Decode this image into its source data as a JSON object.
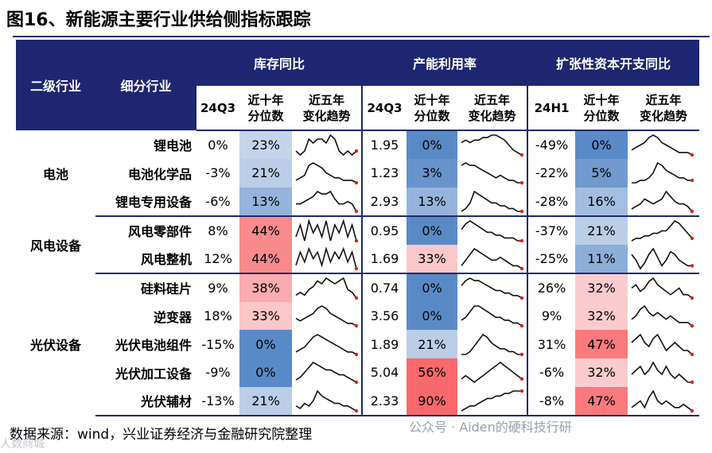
{
  "title": "图16、新能源主要行业供给侧指标跟踪",
  "source": "数据来源：wind，兴业证券经济与金融研究院整理",
  "watermark": "公众号 · Aiden的硬科技行研",
  "watermark2": "人数商城",
  "headers": {
    "segment": "二级行业",
    "industry": "细分行业",
    "groups": [
      "库存同比",
      "产能利用率",
      "扩张性资本开支同比"
    ],
    "period": [
      "24Q3",
      "24Q3",
      "24H1"
    ],
    "pct_label": [
      "近十年",
      "分位数"
    ],
    "trend_label": [
      "近五年",
      "变化趋势"
    ]
  },
  "colors": {
    "header_bg": "#1d2771",
    "rule": "#1f2a6b",
    "high": "#f8696b",
    "low": "#5a8ac6",
    "neutral": "#fcfcff",
    "trend_line": "#111111",
    "trend_end": "#e0201b"
  },
  "chart_data": {
    "type": "table",
    "segments": [
      {
        "name": "电池",
        "rows": 3
      },
      {
        "name": "风电设备",
        "rows": 2
      },
      {
        "name": "光伏设备",
        "rows": 5
      }
    ],
    "rows": [
      {
        "industry": "锂电池",
        "inv_yoy": "0%",
        "inv_pct": "23%",
        "inv_pct_v": 23,
        "cap_util": "1.95",
        "cap_pct": "0%",
        "cap_pct_v": 0,
        "capex_yoy": "-49%",
        "capex_pct": "0%",
        "capex_pct_v": 0,
        "inv_trend": [
          5,
          4,
          5,
          8,
          7,
          8,
          8,
          7,
          9,
          8,
          5,
          4,
          5,
          4,
          5
        ],
        "cap_trend": [
          6,
          7,
          6,
          7,
          7,
          8,
          8,
          9,
          9,
          8,
          7,
          5,
          3,
          2,
          1
        ],
        "capex_trend": [
          3,
          4,
          5,
          6,
          8,
          9,
          8,
          6,
          5,
          4,
          3,
          2,
          2,
          2,
          1
        ]
      },
      {
        "industry": "电池化学品",
        "inv_yoy": "-3%",
        "inv_pct": "21%",
        "inv_pct_v": 21,
        "cap_util": "1.23",
        "cap_pct": "3%",
        "cap_pct_v": 3,
        "capex_yoy": "-22%",
        "capex_pct": "5%",
        "capex_pct_v": 5,
        "inv_trend": [
          2,
          3,
          4,
          8,
          9,
          8,
          7,
          5,
          4,
          3,
          3,
          2,
          2,
          2,
          1
        ],
        "cap_trend": [
          8,
          9,
          8,
          8,
          7,
          6,
          5,
          4,
          3,
          4,
          3,
          2,
          2,
          1,
          1
        ],
        "capex_trend": [
          1,
          1,
          2,
          2,
          3,
          5,
          9,
          8,
          6,
          5,
          4,
          3,
          3,
          2,
          2
        ]
      },
      {
        "industry": "锂电专用设备",
        "inv_yoy": "-6%",
        "inv_pct": "13%",
        "inv_pct_v": 13,
        "cap_util": "2.93",
        "cap_pct": "13%",
        "cap_pct_v": 13,
        "capex_yoy": "-28%",
        "capex_pct": "16%",
        "capex_pct_v": 16,
        "inv_trend": [
          4,
          4,
          5,
          6,
          7,
          9,
          8,
          8,
          9,
          6,
          4,
          4,
          5,
          4,
          1
        ],
        "cap_trend": [
          2,
          3,
          5,
          9,
          8,
          7,
          6,
          5,
          5,
          4,
          4,
          3,
          3,
          2,
          2
        ],
        "capex_trend": [
          2,
          3,
          4,
          6,
          5,
          4,
          5,
          6,
          9,
          7,
          5,
          4,
          4,
          3,
          1
        ]
      },
      {
        "industry": "风电零部件",
        "inv_yoy": "8%",
        "inv_pct": "44%",
        "inv_pct_v": 44,
        "cap_util": "0.95",
        "cap_pct": "0%",
        "cap_pct_v": 0,
        "capex_yoy": "-37%",
        "capex_pct": "21%",
        "capex_pct_v": 21,
        "inv_trend": [
          5,
          8,
          4,
          9,
          6,
          8,
          5,
          9,
          4,
          8,
          6,
          9,
          5,
          8,
          4
        ],
        "cap_trend": [
          6,
          8,
          9,
          8,
          7,
          6,
          5,
          5,
          4,
          4,
          3,
          3,
          3,
          2,
          2
        ],
        "capex_trend": [
          1,
          2,
          2,
          3,
          3,
          4,
          4,
          5,
          5,
          7,
          9,
          8,
          6,
          4,
          2
        ]
      },
      {
        "industry": "风电整机",
        "inv_yoy": "12%",
        "inv_pct": "44%",
        "inv_pct_v": 44,
        "cap_util": "1.69",
        "cap_pct": "33%",
        "cap_pct_v": 33,
        "capex_yoy": "-25%",
        "capex_pct": "11%",
        "capex_pct_v": 11,
        "inv_trend": [
          4,
          8,
          5,
          9,
          6,
          8,
          4,
          9,
          5,
          8,
          6,
          9,
          5,
          8,
          3
        ],
        "cap_trend": [
          3,
          5,
          7,
          9,
          8,
          7,
          6,
          5,
          5,
          6,
          5,
          4,
          3,
          3,
          2
        ],
        "capex_trend": [
          7,
          5,
          2,
          4,
          7,
          9,
          6,
          3,
          5,
          8,
          7,
          5,
          4,
          3,
          3
        ]
      },
      {
        "industry": "硅料硅片",
        "inv_yoy": "9%",
        "inv_pct": "38%",
        "inv_pct_v": 38,
        "cap_util": "0.74",
        "cap_pct": "0%",
        "cap_pct_v": 0,
        "capex_yoy": "26%",
        "capex_pct": "32%",
        "capex_pct_v": 32,
        "inv_trend": [
          3,
          4,
          3,
          5,
          6,
          8,
          7,
          9,
          8,
          7,
          8,
          9,
          5,
          4,
          2
        ],
        "cap_trend": [
          6,
          8,
          9,
          8,
          8,
          7,
          6,
          5,
          4,
          4,
          3,
          3,
          2,
          2,
          1
        ],
        "capex_trend": [
          5,
          6,
          4,
          5,
          7,
          8,
          6,
          5,
          4,
          3,
          4,
          5,
          3,
          3,
          2
        ]
      },
      {
        "industry": "逆变器",
        "inv_yoy": "18%",
        "inv_pct": "33%",
        "inv_pct_v": 33,
        "cap_util": "3.56",
        "cap_pct": "0%",
        "cap_pct_v": 0,
        "capex_yoy": "9%",
        "capex_pct": "32%",
        "capex_pct_v": 32,
        "inv_trend": [
          4,
          3,
          4,
          5,
          6,
          8,
          9,
          8,
          6,
          5,
          4,
          3,
          2,
          2,
          1
        ],
        "cap_trend": [
          4,
          5,
          7,
          9,
          9,
          8,
          7,
          6,
          5,
          5,
          4,
          4,
          3,
          3,
          2
        ],
        "capex_trend": [
          4,
          5,
          7,
          8,
          6,
          5,
          6,
          5,
          4,
          5,
          4,
          3,
          3,
          3,
          2
        ]
      },
      {
        "industry": "光伏电池组件",
        "inv_yoy": "-15%",
        "inv_pct": "0%",
        "inv_pct_v": 0,
        "cap_util": "1.89",
        "cap_pct": "21%",
        "cap_pct_v": 21,
        "capex_yoy": "31%",
        "capex_pct": "47%",
        "capex_pct_v": 47,
        "inv_trend": [
          2,
          3,
          4,
          6,
          8,
          9,
          8,
          7,
          6,
          5,
          4,
          3,
          2,
          2,
          1
        ],
        "cap_trend": [
          2,
          2,
          3,
          5,
          7,
          9,
          8,
          6,
          5,
          4,
          4,
          3,
          3,
          2,
          2
        ],
        "capex_trend": [
          6,
          7,
          8,
          6,
          5,
          7,
          8,
          6,
          4,
          5,
          6,
          5,
          4,
          4,
          3
        ]
      },
      {
        "industry": "光伏加工设备",
        "inv_yoy": "-9%",
        "inv_pct": "0%",
        "inv_pct_v": 0,
        "cap_util": "5.04",
        "cap_pct": "56%",
        "cap_pct_v": 56,
        "capex_yoy": "-6%",
        "capex_pct": "32%",
        "capex_pct_v": 32,
        "inv_trend": [
          2,
          3,
          5,
          7,
          9,
          8,
          7,
          6,
          6,
          5,
          4,
          4,
          3,
          2,
          1
        ],
        "cap_trend": [
          3,
          4,
          3,
          2,
          3,
          4,
          5,
          6,
          7,
          8,
          7,
          6,
          5,
          4,
          3
        ],
        "capex_trend": [
          5,
          6,
          7,
          5,
          6,
          8,
          6,
          5,
          7,
          5,
          4,
          5,
          4,
          3,
          3
        ]
      },
      {
        "industry": "光伏辅材",
        "inv_yoy": "-13%",
        "inv_pct": "21%",
        "inv_pct_v": 21,
        "cap_util": "2.33",
        "cap_pct": "90%",
        "cap_pct_v": 90,
        "capex_yoy": "-8%",
        "capex_pct": "47%",
        "capex_pct_v": 47,
        "inv_trend": [
          3,
          2,
          4,
          3,
          5,
          9,
          7,
          6,
          5,
          4,
          4,
          3,
          3,
          2,
          1
        ],
        "cap_trend": [
          1,
          2,
          3,
          3,
          4,
          5,
          6,
          6,
          7,
          7,
          8,
          8,
          9,
          9,
          9
        ],
        "capex_trend": [
          4,
          5,
          6,
          4,
          7,
          9,
          6,
          5,
          6,
          5,
          4,
          4,
          5,
          4,
          3
        ]
      }
    ]
  }
}
